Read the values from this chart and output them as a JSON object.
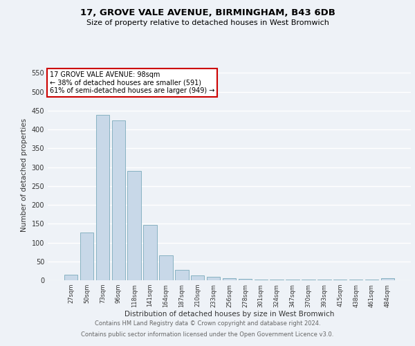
{
  "title1": "17, GROVE VALE AVENUE, BIRMINGHAM, B43 6DB",
  "title2": "Size of property relative to detached houses in West Bromwich",
  "xlabel": "Distribution of detached houses by size in West Bromwich",
  "ylabel": "Number of detached properties",
  "categories": [
    "27sqm",
    "50sqm",
    "73sqm",
    "96sqm",
    "118sqm",
    "141sqm",
    "164sqm",
    "187sqm",
    "210sqm",
    "233sqm",
    "256sqm",
    "278sqm",
    "301sqm",
    "324sqm",
    "347sqm",
    "370sqm",
    "393sqm",
    "415sqm",
    "438sqm",
    "461sqm",
    "484sqm"
  ],
  "values": [
    15,
    127,
    438,
    425,
    291,
    147,
    67,
    28,
    13,
    10,
    5,
    3,
    2,
    1,
    1,
    1,
    1,
    1,
    1,
    1,
    5
  ],
  "bar_color": "#c8d8e8",
  "bar_edge_color": "#7aaabb",
  "annotation_text": "17 GROVE VALE AVENUE: 98sqm\n← 38% of detached houses are smaller (591)\n61% of semi-detached houses are larger (949) →",
  "annotation_box_color": "#ffffff",
  "annotation_box_edge_color": "#cc0000",
  "ylim": [
    0,
    560
  ],
  "yticks": [
    0,
    50,
    100,
    150,
    200,
    250,
    300,
    350,
    400,
    450,
    500,
    550
  ],
  "footer_line1": "Contains HM Land Registry data © Crown copyright and database right 2024.",
  "footer_line2": "Contains public sector information licensed under the Open Government Licence v3.0.",
  "bg_color": "#eef2f7",
  "grid_color": "#ffffff"
}
